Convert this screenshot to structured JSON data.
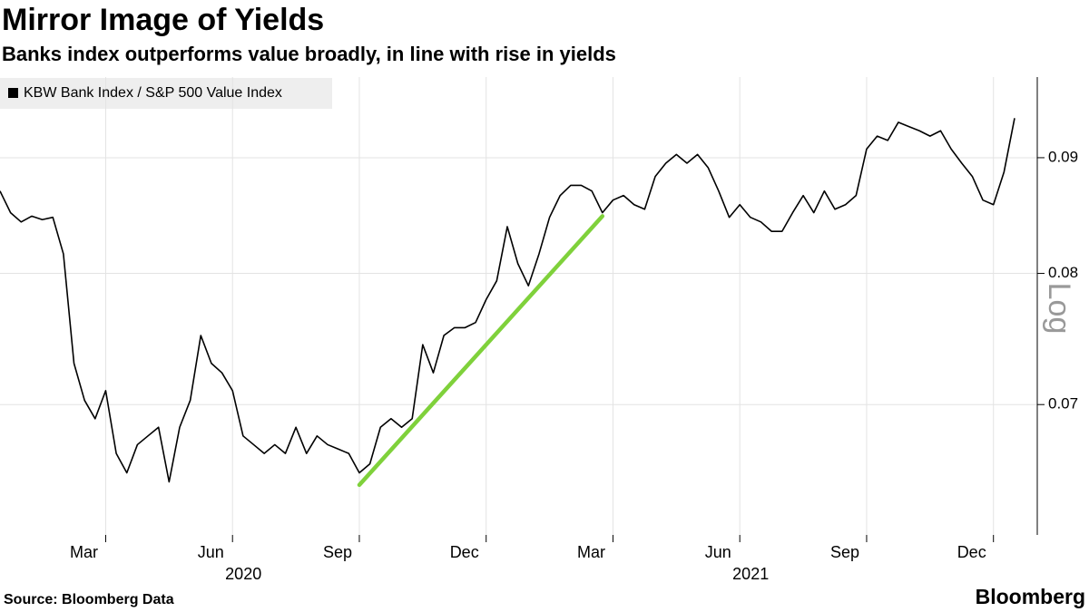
{
  "chart_data": {
    "type": "line",
    "title": "Mirror Image of Yields",
    "subtitle": "Banks index outperforms value broadly, in line with rise in yields",
    "source": "Source: Bloomberg Data",
    "brand": "Bloomberg",
    "scale_label": "Log",
    "log_scale": true,
    "grid": true,
    "legend": "top-left",
    "categories": [
      null,
      null,
      null,
      null,
      null,
      null,
      null,
      null,
      null,
      null,
      "Mar",
      null,
      null,
      null,
      null,
      null,
      null,
      null,
      null,
      null,
      null,
      null,
      "Jun",
      null,
      null,
      null,
      null,
      null,
      null,
      null,
      null,
      null,
      null,
      null,
      "Sep",
      null,
      null,
      null,
      null,
      null,
      null,
      null,
      null,
      null,
      null,
      null,
      "Dec",
      null,
      null,
      null,
      null,
      null,
      null,
      null,
      null,
      null,
      null,
      null,
      "Mar",
      null,
      null,
      null,
      null,
      null,
      null,
      null,
      null,
      null,
      null,
      null,
      "Jun",
      null,
      null,
      null,
      null,
      null,
      null,
      null,
      null,
      null,
      null,
      null,
      "Sep",
      null,
      null,
      null,
      null,
      null,
      null,
      null,
      null,
      null,
      null,
      null,
      "Dec",
      null,
      null
    ],
    "years": [
      "2020",
      "2021"
    ],
    "series": [
      {
        "name": "KBW Bank Index / S&P 500 Value Index",
        "color": "#000000",
        "values": [
          0.087,
          0.0851,
          0.0843,
          0.0848,
          0.0845,
          0.0847,
          0.0816,
          0.073,
          0.0703,
          0.069,
          0.071,
          0.0666,
          0.0653,
          0.0672,
          0.0678,
          0.0684,
          0.0647,
          0.0684,
          0.0703,
          0.0751,
          0.073,
          0.0723,
          0.071,
          0.0678,
          0.0672,
          0.0666,
          0.0672,
          0.0666,
          0.0684,
          0.0666,
          0.0678,
          0.0672,
          0.0669,
          0.0666,
          0.0653,
          0.0659,
          0.0684,
          0.069,
          0.0684,
          0.069,
          0.0744,
          0.0723,
          0.0751,
          0.0757,
          0.0757,
          0.0761,
          0.0779,
          0.0794,
          0.0839,
          0.0808,
          0.079,
          0.0816,
          0.0847,
          0.0866,
          0.0875,
          0.0875,
          0.087,
          0.0851,
          0.0862,
          0.0866,
          0.0858,
          0.0854,
          0.0883,
          0.0895,
          0.0903,
          0.0895,
          0.0903,
          0.0891,
          0.087,
          0.0847,
          0.0858,
          0.0847,
          0.0843,
          0.0835,
          0.0835,
          0.0851,
          0.0866,
          0.0851,
          0.087,
          0.0854,
          0.0858,
          0.0866,
          0.0908,
          0.092,
          0.0916,
          0.0933,
          0.0929,
          0.0925,
          0.092,
          0.0925,
          0.0908,
          0.0895,
          0.0883,
          0.0862,
          0.0858,
          0.0887,
          0.0937
        ]
      }
    ],
    "trendline": {
      "color": "#7fd13b",
      "points": [
        [
          34,
          0.0645
        ],
        [
          57,
          0.0848
        ]
      ]
    },
    "ylim": [
      0.0613,
      0.0977
    ],
    "yticks": [
      0.07,
      0.08,
      0.09
    ]
  }
}
